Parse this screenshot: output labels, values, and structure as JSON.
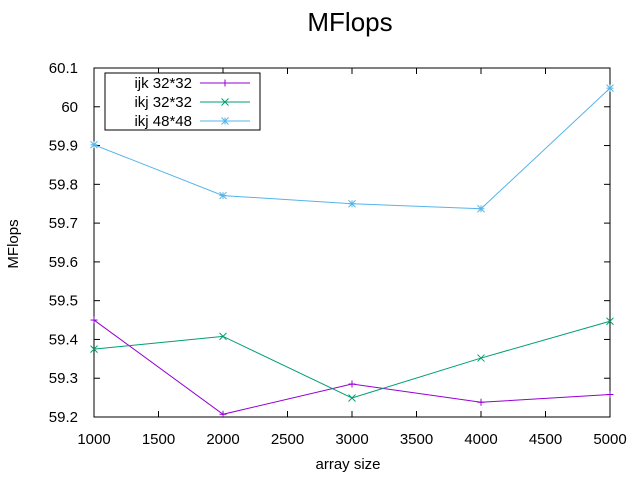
{
  "chart_data": {
    "type": "line",
    "title": "MFlops",
    "xlabel": "array size",
    "ylabel": "MFlops",
    "xlim": [
      1000,
      5000
    ],
    "ylim": [
      59.2,
      60.1
    ],
    "x_ticks": [
      1000,
      1500,
      2000,
      2500,
      3000,
      3500,
      4000,
      4500,
      5000
    ],
    "y_ticks": [
      59.2,
      59.3,
      59.4,
      59.5,
      59.6,
      59.7,
      59.8,
      59.9,
      60,
      60.1
    ],
    "y_tick_labels": [
      "59.2",
      "59.3",
      "59.4",
      "59.5",
      "59.6",
      "59.7",
      "59.8",
      "59.9",
      "60",
      "60.1"
    ],
    "legend_position": "top-left",
    "grid": false,
    "x": [
      1000,
      2000,
      3000,
      4000,
      5000
    ],
    "series": [
      {
        "name": "ijk 32*32",
        "color": "#9400d3",
        "marker": "plus",
        "values": [
          59.45,
          59.207,
          59.285,
          59.238,
          59.258
        ]
      },
      {
        "name": "ikj 32*32",
        "color": "#009e73",
        "marker": "cross",
        "values": [
          59.375,
          59.408,
          59.249,
          59.352,
          59.447
        ]
      },
      {
        "name": "ikj 48*48",
        "color": "#56b4e9",
        "marker": "star",
        "values": [
          59.902,
          59.771,
          59.75,
          59.737,
          60.048
        ]
      }
    ]
  }
}
